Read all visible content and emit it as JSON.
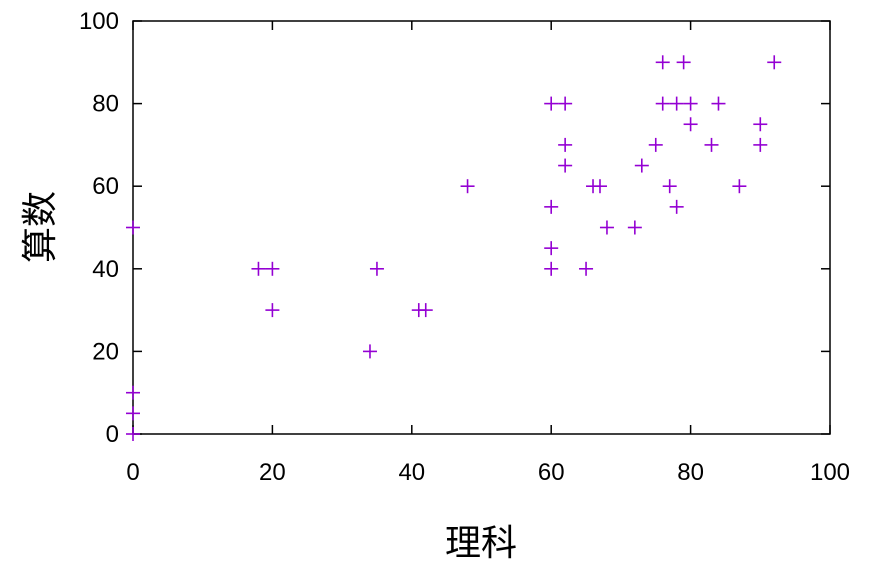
{
  "chart_data": {
    "type": "scatter",
    "title": "",
    "xlabel": "理科",
    "ylabel": "算数",
    "xlim": [
      0,
      100
    ],
    "ylim": [
      0,
      100
    ],
    "xticks": [
      "0",
      "20",
      "40",
      "60",
      "80",
      "100"
    ],
    "yticks": [
      "0",
      "20",
      "40",
      "60",
      "80",
      "100"
    ],
    "grid": false,
    "legend": "none",
    "marker": "plus",
    "marker_color": "#9400d3",
    "points": [
      [
        0,
        0
      ],
      [
        0,
        5
      ],
      [
        0,
        10
      ],
      [
        0,
        50
      ],
      [
        18,
        40
      ],
      [
        20,
        40
      ],
      [
        20,
        30
      ],
      [
        34,
        20
      ],
      [
        35,
        40
      ],
      [
        41,
        30
      ],
      [
        42,
        30
      ],
      [
        48,
        60
      ],
      [
        60,
        80
      ],
      [
        62,
        80
      ],
      [
        62,
        70
      ],
      [
        62,
        65
      ],
      [
        60,
        55
      ],
      [
        60,
        45
      ],
      [
        60,
        40
      ],
      [
        65,
        40
      ],
      [
        66,
        60
      ],
      [
        67,
        60
      ],
      [
        68,
        50
      ],
      [
        72,
        50
      ],
      [
        73,
        65
      ],
      [
        75,
        70
      ],
      [
        76,
        90
      ],
      [
        79,
        90
      ],
      [
        76,
        80
      ],
      [
        78,
        80
      ],
      [
        80,
        80
      ],
      [
        84,
        80
      ],
      [
        80,
        75
      ],
      [
        77,
        60
      ],
      [
        78,
        55
      ],
      [
        83,
        70
      ],
      [
        87,
        60
      ],
      [
        90,
        75
      ],
      [
        90,
        70
      ],
      [
        92,
        90
      ]
    ]
  }
}
